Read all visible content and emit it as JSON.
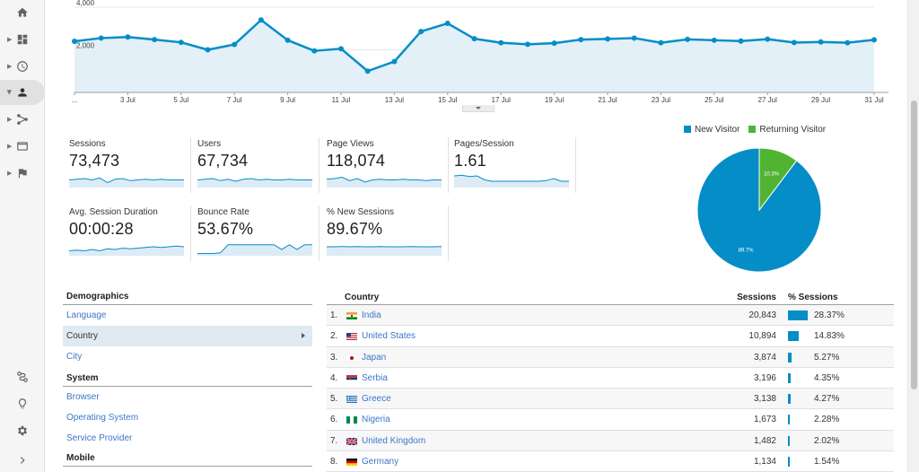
{
  "nav": {
    "icons": [
      "home-icon",
      "dashboard-icon",
      "realtime-clock-icon",
      "audience-person-icon",
      "acquisition-icon",
      "behavior-icon",
      "conversions-flag-icon",
      "attribution-icon",
      "discover-bulb-icon",
      "settings-gear-icon",
      "expand-chevron-icon"
    ]
  },
  "chart_data": {
    "type": "line",
    "ytick_labels": [
      "4,000",
      "2,000"
    ],
    "ylim": [
      0,
      4000
    ],
    "xtick_labels": [
      "...",
      "3 Jul",
      "5 Jul",
      "7 Jul",
      "9 Jul",
      "11 Jul",
      "13 Jul",
      "15 Jul",
      "17 Jul",
      "19 Jul",
      "21 Jul",
      "23 Jul",
      "25 Jul",
      "27 Jul",
      "29 Jul",
      "31 Jul"
    ],
    "grid": true,
    "series": [
      {
        "color": "#058dc7",
        "values": [
          2400,
          2550,
          2600,
          2480,
          2350,
          2000,
          2250,
          3400,
          2450,
          1950,
          2050,
          1000,
          1450,
          2860,
          3240,
          2520,
          2330,
          2260,
          2310,
          2480,
          2510,
          2550,
          2330,
          2490,
          2450,
          2410,
          2500,
          2340,
          2370,
          2330,
          2470
        ]
      }
    ]
  },
  "metrics": [
    {
      "label": "Sessions",
      "value": "73,473",
      "spark": [
        0.5,
        0.55,
        0.6,
        0.5,
        0.65,
        0.3,
        0.55,
        0.6,
        0.45,
        0.5,
        0.55,
        0.5,
        0.55,
        0.5,
        0.5,
        0.5
      ]
    },
    {
      "label": "Users",
      "value": "67,734",
      "spark": [
        0.5,
        0.55,
        0.6,
        0.45,
        0.55,
        0.4,
        0.55,
        0.6,
        0.5,
        0.55,
        0.5,
        0.5,
        0.55,
        0.5,
        0.5,
        0.5
      ]
    },
    {
      "label": "Page Views",
      "value": "118,074",
      "spark": [
        0.55,
        0.6,
        0.7,
        0.45,
        0.6,
        0.35,
        0.5,
        0.55,
        0.5,
        0.5,
        0.55,
        0.5,
        0.5,
        0.45,
        0.5,
        0.5
      ]
    },
    {
      "label": "Pages/Session",
      "value": "1.61",
      "spark": [
        0.8,
        0.85,
        0.75,
        0.8,
        0.5,
        0.4,
        0.4,
        0.4,
        0.4,
        0.4,
        0.4,
        0.4,
        0.45,
        0.6,
        0.4,
        0.4
      ]
    },
    {
      "label": "Avg. Session Duration",
      "value": "00:00:28",
      "spark": [
        0.3,
        0.35,
        0.3,
        0.4,
        0.3,
        0.45,
        0.4,
        0.5,
        0.45,
        0.5,
        0.55,
        0.6,
        0.55,
        0.6,
        0.65,
        0.6
      ]
    },
    {
      "label": "Bounce Rate",
      "value": "53.67%",
      "spark": [
        0.1,
        0.1,
        0.1,
        0.15,
        0.75,
        0.75,
        0.75,
        0.75,
        0.75,
        0.75,
        0.75,
        0.4,
        0.75,
        0.4,
        0.75,
        0.75
      ]
    },
    {
      "label": "% New Sessions",
      "value": "89.67%",
      "spark": [
        0.6,
        0.6,
        0.62,
        0.6,
        0.62,
        0.6,
        0.6,
        0.62,
        0.6,
        0.6,
        0.6,
        0.62,
        0.6,
        0.6,
        0.6,
        0.62
      ]
    }
  ],
  "pie": {
    "chart_data": {
      "type": "pie",
      "legend": [
        "New Visitor",
        "Returning Visitor"
      ],
      "values": [
        89.7,
        10.3
      ],
      "labels": [
        "89.7%",
        "10.3%"
      ],
      "colors": [
        "#058dc7",
        "#50b432"
      ]
    }
  },
  "demographics": {
    "header": "Demographics",
    "items": [
      "Language",
      "Country",
      "City"
    ],
    "selected": "Country",
    "system_header": "System",
    "system_items": [
      "Browser",
      "Operating System",
      "Service Provider"
    ],
    "mobile_header": "Mobile"
  },
  "country_table": {
    "col_country": "Country",
    "col_sessions": "Sessions",
    "col_pct": "% Sessions",
    "rows": [
      {
        "rank": "1.",
        "flag": "india-flag-icon",
        "country": "India",
        "sessions": "20,843",
        "pct": "28.37%",
        "share": 28.37
      },
      {
        "rank": "2.",
        "flag": "usa-flag-icon",
        "country": "United States",
        "sessions": "10,894",
        "pct": "14.83%",
        "share": 14.83
      },
      {
        "rank": "3.",
        "flag": "japan-flag-icon",
        "country": "Japan",
        "sessions": "3,874",
        "pct": "5.27%",
        "share": 5.27
      },
      {
        "rank": "4.",
        "flag": "serbia-flag-icon",
        "country": "Serbia",
        "sessions": "3,196",
        "pct": "4.35%",
        "share": 4.35
      },
      {
        "rank": "5.",
        "flag": "greece-flag-icon",
        "country": "Greece",
        "sessions": "3,138",
        "pct": "4.27%",
        "share": 4.27
      },
      {
        "rank": "6.",
        "flag": "nigeria-flag-icon",
        "country": "Nigeria",
        "sessions": "1,673",
        "pct": "2.28%",
        "share": 2.28
      },
      {
        "rank": "7.",
        "flag": "uk-flag-icon",
        "country": "United Kingdom",
        "sessions": "1,482",
        "pct": "2.02%",
        "share": 2.02
      },
      {
        "rank": "8.",
        "flag": "germany-flag-icon",
        "country": "Germany",
        "sessions": "1,134",
        "pct": "1.54%",
        "share": 1.54
      }
    ]
  }
}
